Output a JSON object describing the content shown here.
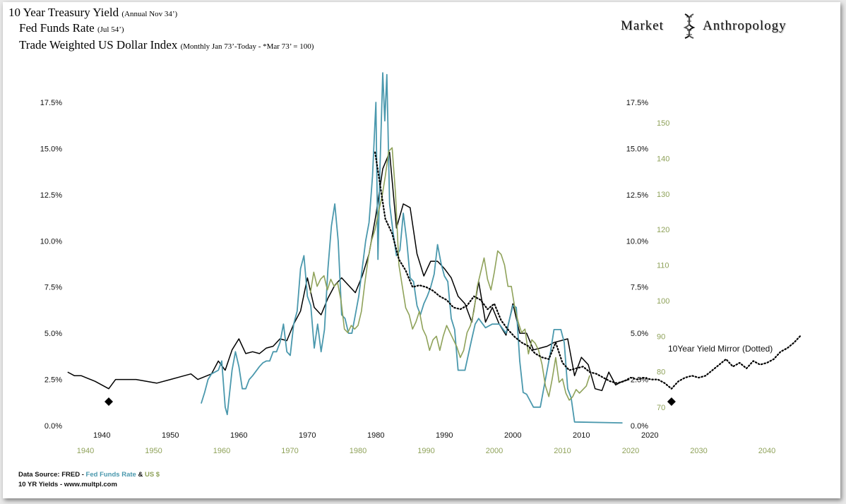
{
  "titles": {
    "treasury": {
      "main": "10 Year Treasury Yield",
      "note": "(Annual Nov 34’)"
    },
    "fed": {
      "main": "Fed Funds Rate",
      "note": "(Jul 54’)"
    },
    "dollar": {
      "main": "Trade Weighted US Dollar Index",
      "note": "(Monthly Jan 73’-Today - *Mar 73’ = 100)"
    }
  },
  "brand": {
    "left": "Market",
    "right": "Anthropology"
  },
  "footer": {
    "source_label": "Data Source: FRED -",
    "fed_label": "Fed Funds Rate",
    "amp": "&",
    "usd_label": "US $",
    "yields_label": "10 YR Yields - www.multpl.com"
  },
  "colors": {
    "treasury": "#000000",
    "fed": "#4a98ad",
    "dollar": "#8fa25a",
    "background": "#ffffff"
  },
  "chart_data": {
    "type": "line",
    "title": "10 Year Treasury Yield / Fed Funds Rate / Trade Weighted US Dollar Index",
    "annotation": "10Year Yield Mirror (Dotted)",
    "y_left": {
      "range": [
        0,
        17.5
      ],
      "ticks": [
        "0.0%",
        "2.5%",
        "5.0%",
        "7.5%",
        "10.0%",
        "12.5%",
        "15.0%",
        "17.5%"
      ]
    },
    "y_right_yield": {
      "range": [
        0,
        17.5
      ],
      "ticks": [
        "0.0%",
        "2.5%",
        "5.0%",
        "7.5%",
        "10.0%",
        "12.5%",
        "15.0%",
        "17.5%"
      ]
    },
    "y_right_dollar": {
      "range": [
        70,
        150
      ],
      "ticks": [
        "70",
        "80",
        "90",
        "100",
        "110",
        "120",
        "130",
        "140",
        "150"
      ]
    },
    "x_top": {
      "range": [
        1935,
        2020
      ],
      "ticks": [
        "1940",
        "1950",
        "1960",
        "1970",
        "1980",
        "1990",
        "2000",
        "2010",
        "2020"
      ]
    },
    "x_bottom": {
      "range": [
        1935,
        2045
      ],
      "ticks": [
        "1940",
        "1950",
        "1960",
        "1970",
        "1980",
        "1990",
        "2000",
        "2010",
        "2020",
        "2030",
        "2040"
      ]
    },
    "series": [
      {
        "name": "10 Year Treasury Yield",
        "axis": "top",
        "x": [
          1935,
          1936,
          1937,
          1939,
          1941,
          1942,
          1943,
          1945,
          1948,
          1950,
          1953,
          1954,
          1956,
          1957,
          1958,
          1959,
          1960,
          1961,
          1962,
          1963,
          1964,
          1965,
          1966,
          1967,
          1968,
          1969,
          1970,
          1971,
          1972,
          1973,
          1974,
          1975,
          1976,
          1977,
          1978,
          1979,
          1980,
          1981,
          1982,
          1983,
          1984,
          1985,
          1986,
          1987,
          1988,
          1989,
          1990,
          1991,
          1992,
          1993,
          1994,
          1995,
          1996,
          1997,
          1998,
          1999,
          2000,
          2001,
          2002,
          2003,
          2004,
          2005,
          2006,
          2007,
          2008,
          2009,
          2010,
          2011,
          2012,
          2013,
          2014,
          2015,
          2016,
          2017
        ],
        "y": [
          2.9,
          2.7,
          2.7,
          2.4,
          2.0,
          2.5,
          2.5,
          2.5,
          2.3,
          2.5,
          2.8,
          2.5,
          2.8,
          3.5,
          3.0,
          4.1,
          4.7,
          3.9,
          4.0,
          3.9,
          4.2,
          4.3,
          4.7,
          4.6,
          5.5,
          6.2,
          8.0,
          6.4,
          6.0,
          6.9,
          7.6,
          8.0,
          7.6,
          7.2,
          8.1,
          9.3,
          11.4,
          13.9,
          14.8,
          10.7,
          12.0,
          11.8,
          9.3,
          8.1,
          8.9,
          8.9,
          8.5,
          8.0,
          7.0,
          6.6,
          5.6,
          7.8,
          5.6,
          6.4,
          5.5,
          4.9,
          6.6,
          5.0,
          5.0,
          4.1,
          4.2,
          4.3,
          4.5,
          4.6,
          4.7,
          2.7,
          3.7,
          3.3,
          2.0,
          1.9,
          2.9,
          2.2,
          2.4,
          2.5
        ]
      },
      {
        "name": "Fed Funds Rate",
        "axis": "top",
        "x": [
          1954.5,
          1955,
          1955.5,
          1956,
          1956.5,
          1957,
          1957.5,
          1958,
          1958.3,
          1959,
          1959.5,
          1960,
          1960.5,
          1961,
          1961.5,
          1962,
          1963,
          1963.5,
          1964,
          1964.5,
          1965,
          1965.5,
          1966,
          1966.5,
          1967,
          1967.5,
          1968,
          1968.5,
          1969,
          1969.5,
          1970,
          1970.5,
          1971,
          1971.5,
          1972,
          1972.5,
          1973,
          1973.5,
          1974,
          1974.5,
          1975,
          1975.5,
          1976,
          1976.5,
          1977,
          1977.5,
          1978,
          1978.5,
          1979,
          1979.5,
          1980,
          1980.3,
          1980.6,
          1981,
          1981.3,
          1981.6,
          1982,
          1982.5,
          1983,
          1983.5,
          1984,
          1984.5,
          1985,
          1985.5,
          1986,
          1986.5,
          1987,
          1987.5,
          1988,
          1988.5,
          1989,
          1989.5,
          1990,
          1990.5,
          1991,
          1991.5,
          1992,
          1993,
          1994,
          1994.5,
          1995,
          1996,
          1997,
          1998,
          1999,
          2000,
          2000.5,
          2001,
          2001.5,
          2002,
          2003,
          2003.5,
          2004,
          2004.5,
          2005,
          2005.5,
          2006,
          2007,
          2007.5,
          2008,
          2008.5,
          2009,
          2016
        ],
        "y": [
          1.2,
          1.8,
          2.5,
          2.8,
          2.9,
          3.0,
          3.5,
          1.0,
          0.6,
          3.0,
          4.0,
          3.2,
          2.0,
          2.0,
          2.5,
          2.7,
          3.2,
          3.4,
          3.5,
          3.5,
          4.0,
          4.0,
          4.5,
          5.5,
          4.0,
          3.8,
          5.5,
          6.2,
          8.5,
          9.2,
          7.0,
          6.5,
          4.2,
          5.5,
          4.0,
          5.2,
          8.5,
          10.8,
          12.0,
          10.0,
          6.0,
          5.8,
          5.0,
          5.0,
          6.0,
          7.0,
          8.5,
          10.0,
          11.0,
          13.5,
          17.5,
          9.0,
          14.0,
          19.1,
          16.5,
          19.0,
          12.0,
          10.5,
          9.2,
          9.5,
          11.5,
          10.0,
          8.0,
          7.8,
          6.5,
          6.0,
          6.6,
          7.0,
          7.5,
          8.2,
          9.8,
          8.8,
          8.1,
          7.8,
          5.8,
          5.2,
          3.0,
          3.0,
          4.7,
          5.5,
          5.8,
          5.3,
          5.5,
          5.5,
          5.0,
          6.5,
          6.4,
          3.5,
          1.8,
          1.7,
          1.0,
          1.0,
          1.0,
          2.0,
          3.0,
          4.0,
          5.2,
          5.2,
          4.5,
          2.0,
          1.5,
          0.2,
          0.15
        ]
      },
      {
        "name": "Trade Weighted US Dollar Index",
        "axis": "bottom",
        "x": [
          1973,
          1973.5,
          1974,
          1974.5,
          1975,
          1975.5,
          1976,
          1976.5,
          1977,
          1977.5,
          1978,
          1978.5,
          1979,
          1979.5,
          1980,
          1980.5,
          1981,
          1981.5,
          1982,
          1982.5,
          1983,
          1983.5,
          1984,
          1984.5,
          1985,
          1985.5,
          1986,
          1986.5,
          1987,
          1987.5,
          1988,
          1988.5,
          1989,
          1989.5,
          1990,
          1990.5,
          1991,
          1991.5,
          1992,
          1992.5,
          1993,
          1993.5,
          1994,
          1994.5,
          1995,
          1995.5,
          1996,
          1996.5,
          1997,
          1997.5,
          1998,
          1998.5,
          1999,
          1999.5,
          2000,
          2000.5,
          2001,
          2001.5,
          2002,
          2002.5,
          2003,
          2003.5,
          2004,
          2004.5,
          2005,
          2005.5,
          2006,
          2006.5,
          2007,
          2007.5,
          2008,
          2008.5,
          2009,
          2009.5,
          2010,
          2010.5,
          2011,
          2011.5,
          2012,
          2012.5,
          2013,
          2013.5,
          2014
        ],
        "y": [
          102,
          108,
          104,
          106,
          107,
          103,
          106,
          104,
          105,
          100,
          92,
          91,
          93,
          92,
          93,
          97,
          105,
          112,
          117,
          120,
          125,
          129,
          135,
          142,
          143,
          130,
          110,
          104,
          98,
          96,
          92,
          94,
          97,
          92,
          90,
          86,
          89,
          90,
          86,
          90,
          93,
          91,
          89,
          87,
          84,
          86,
          91,
          93,
          97,
          104,
          108,
          112,
          106,
          103,
          108,
          114,
          113,
          110,
          104,
          104,
          98,
          94,
          91,
          92,
          85,
          89,
          88,
          86,
          82,
          76,
          73,
          78,
          84,
          77,
          78,
          74,
          72,
          73,
          75,
          74,
          75,
          76,
          79
        ]
      },
      {
        "name": "10Year Yield Mirror (Dotted)",
        "axis": "bottom",
        "style": "dotted",
        "x": [
          1982.5,
          1983,
          1984,
          1985,
          1986,
          1987,
          1988,
          1989,
          1990,
          1991,
          1992,
          1993,
          1994,
          1995,
          1996,
          1997,
          1998,
          1999,
          2000,
          2001,
          2002,
          2003,
          2004,
          2005,
          2006,
          2007,
          2008,
          2009,
          2010,
          2011,
          2012,
          2013,
          2014,
          2015,
          2016,
          2017,
          2018,
          2019,
          2020,
          2021,
          2022,
          2023,
          2024,
          2025,
          2026,
          2027,
          2028,
          2029,
          2030,
          2031,
          2032,
          2033,
          2034,
          2035,
          2036,
          2037,
          2038,
          2039,
          2040,
          2041,
          2042,
          2043,
          2044,
          2045
        ],
        "y": [
          14.8,
          13.6,
          11.2,
          10.4,
          9.0,
          8.4,
          7.5,
          7.6,
          7.5,
          7.3,
          7.0,
          6.8,
          6.4,
          6.3,
          6.5,
          7.0,
          6.8,
          6.3,
          6.6,
          5.7,
          5.2,
          4.8,
          4.5,
          4.3,
          3.9,
          3.7,
          3.6,
          4.5,
          3.4,
          3.0,
          3.1,
          3.2,
          2.9,
          2.8,
          2.6,
          2.4,
          2.3,
          2.4,
          2.6,
          2.5,
          2.6,
          2.5,
          2.5,
          2.3,
          2.0,
          2.4,
          2.6,
          2.7,
          2.6,
          2.7,
          3.0,
          3.3,
          3.6,
          3.2,
          3.4,
          3.1,
          3.5,
          3.3,
          3.4,
          3.6,
          4.0,
          4.2,
          4.5,
          4.9
        ]
      }
    ],
    "markers": [
      {
        "shape": "diamond",
        "year": 1941,
        "axis": "top",
        "value": 1.3
      },
      {
        "shape": "diamond",
        "year": 2026,
        "axis": "bottom",
        "value": 1.3
      }
    ]
  }
}
